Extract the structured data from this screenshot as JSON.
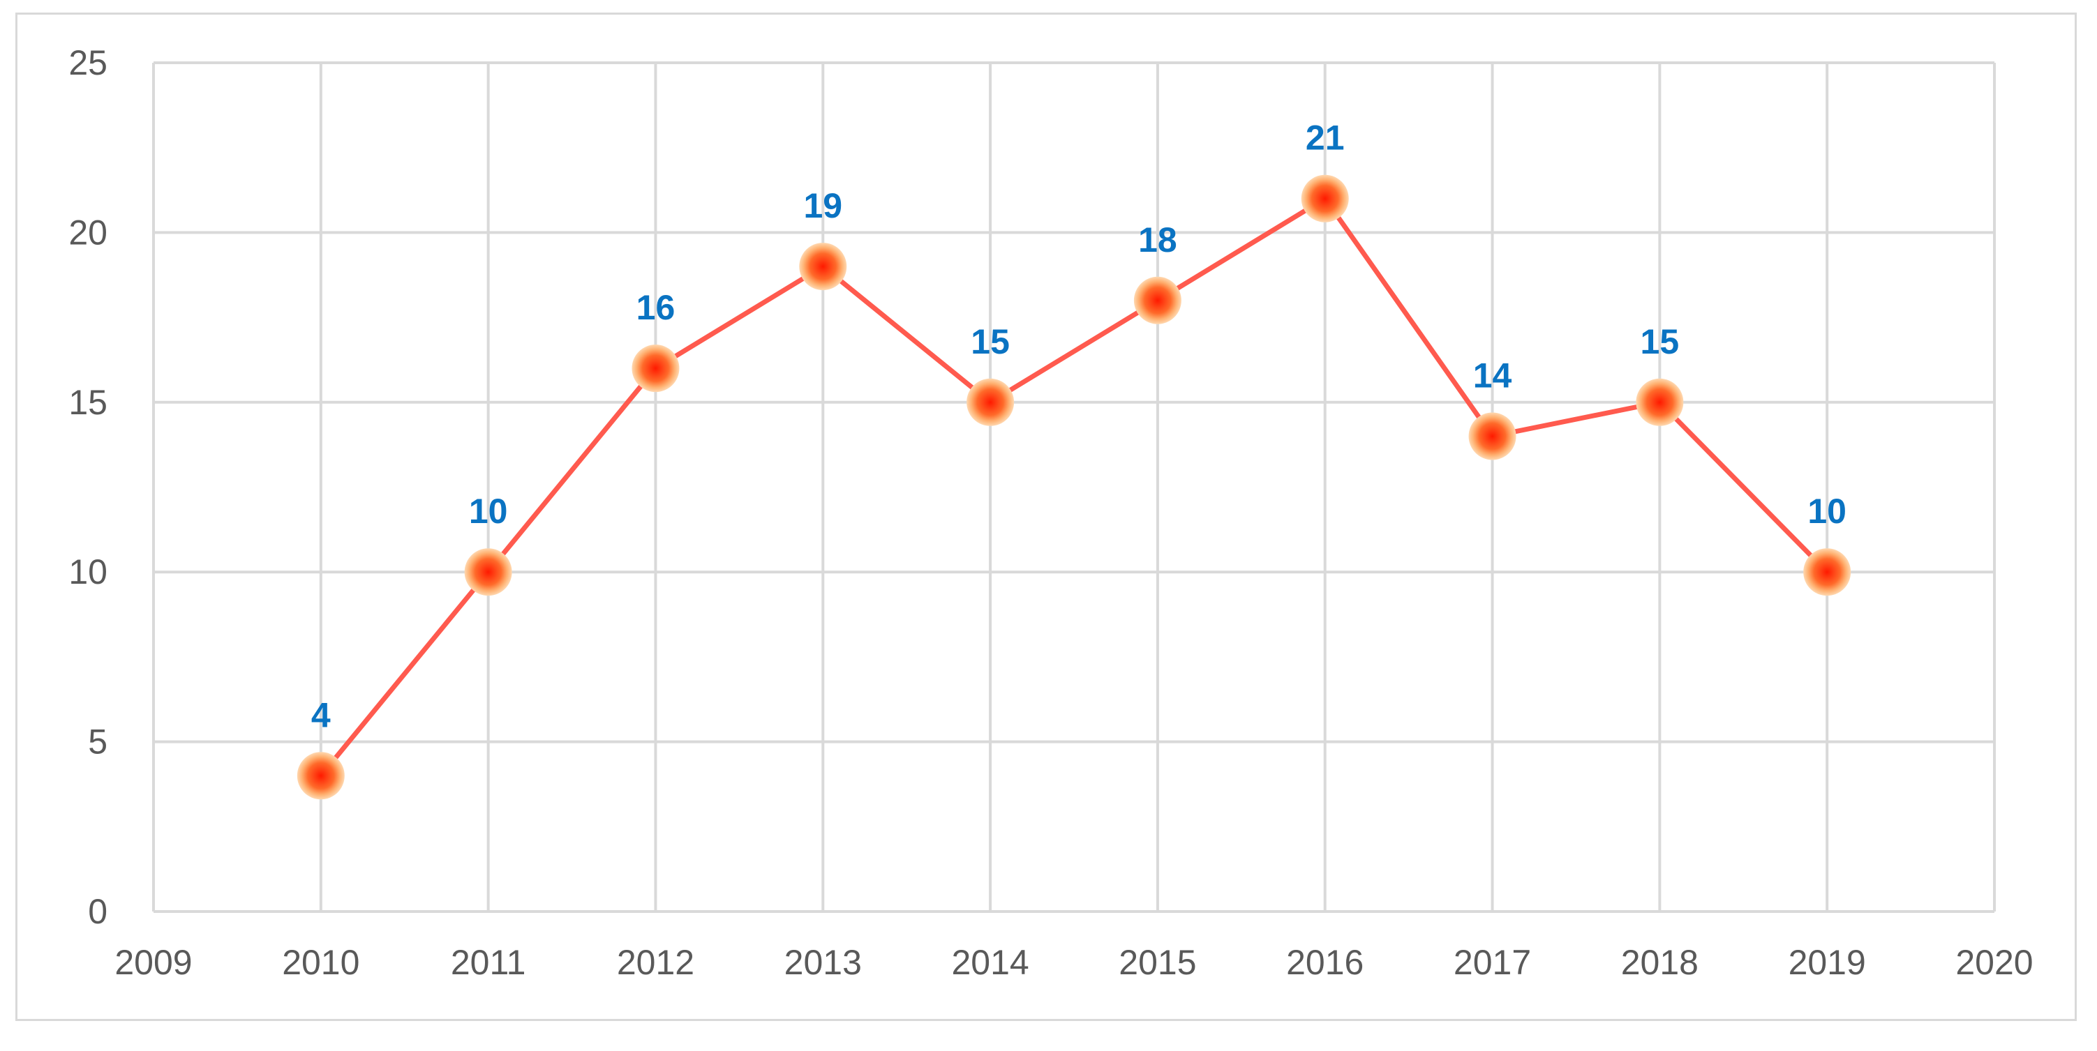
{
  "chart_data": {
    "type": "line",
    "title": "",
    "xlabel": "",
    "ylabel": "",
    "x": [
      2010,
      2011,
      2012,
      2013,
      2014,
      2015,
      2016,
      2017,
      2018,
      2019
    ],
    "series": [
      {
        "values": [
          4,
          10,
          16,
          19,
          15,
          18,
          21,
          14,
          15,
          10
        ]
      }
    ],
    "xlim": [
      2009,
      2020
    ],
    "ylim": [
      0,
      25
    ],
    "x_ticks": [
      "2009",
      "2010",
      "2011",
      "2012",
      "2013",
      "2014",
      "2015",
      "2016",
      "2017",
      "2018",
      "2019",
      "2020"
    ],
    "y_ticks": [
      "0",
      "5",
      "10",
      "15",
      "20",
      "25"
    ],
    "data_labels": [
      "4",
      "10",
      "16",
      "19",
      "15",
      "18",
      "21",
      "14",
      "15",
      "10"
    ],
    "grid": true,
    "legend": "none",
    "colors": {
      "line": "#ff5a4e",
      "marker": "#ff1a00",
      "marker_halo": "#ffb070",
      "data_label": "#0a73c2",
      "grid": "#d9d9d9",
      "tick_text": "#595959"
    }
  }
}
